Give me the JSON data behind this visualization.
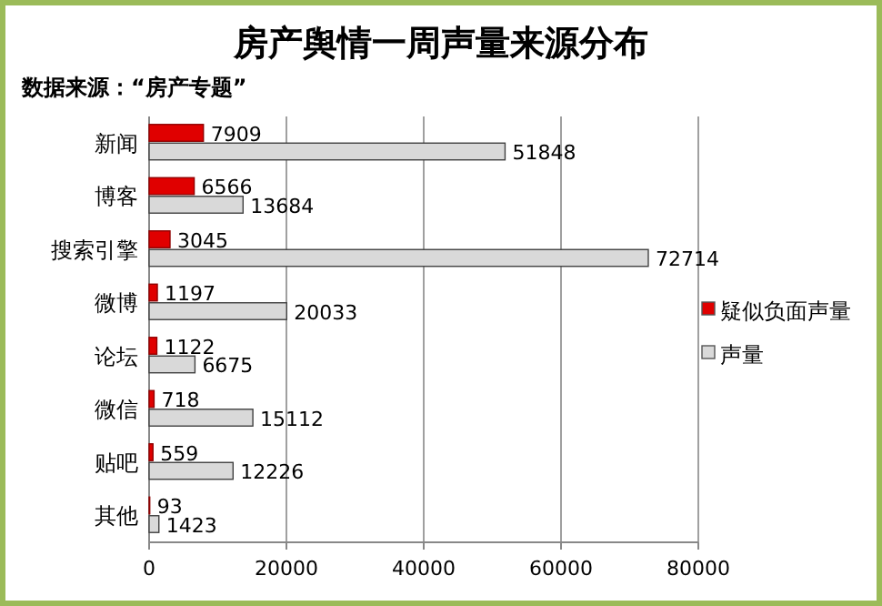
{
  "chart_data": {
    "type": "bar",
    "orientation": "horizontal",
    "title": "房产舆情一周声量来源分布",
    "subtitle": "数据来源：“房产专题”",
    "categories": [
      "新闻",
      "博客",
      "搜索引擎",
      "微博",
      "论坛",
      "微信",
      "贴吧",
      "其他"
    ],
    "series": [
      {
        "name": "疑似负面声量",
        "color": "#e00000",
        "values": [
          7909,
          6566,
          3045,
          1197,
          1122,
          718,
          559,
          93
        ]
      },
      {
        "name": "声量",
        "color": "#d9d9d9",
        "values": [
          51848,
          13684,
          72714,
          20033,
          6675,
          15112,
          12226,
          1423
        ]
      }
    ],
    "xlim": [
      0,
      80000
    ],
    "xticks": [
      0,
      20000,
      40000,
      60000,
      80000
    ],
    "grid": "x",
    "legend": "right",
    "data_labels": true
  }
}
